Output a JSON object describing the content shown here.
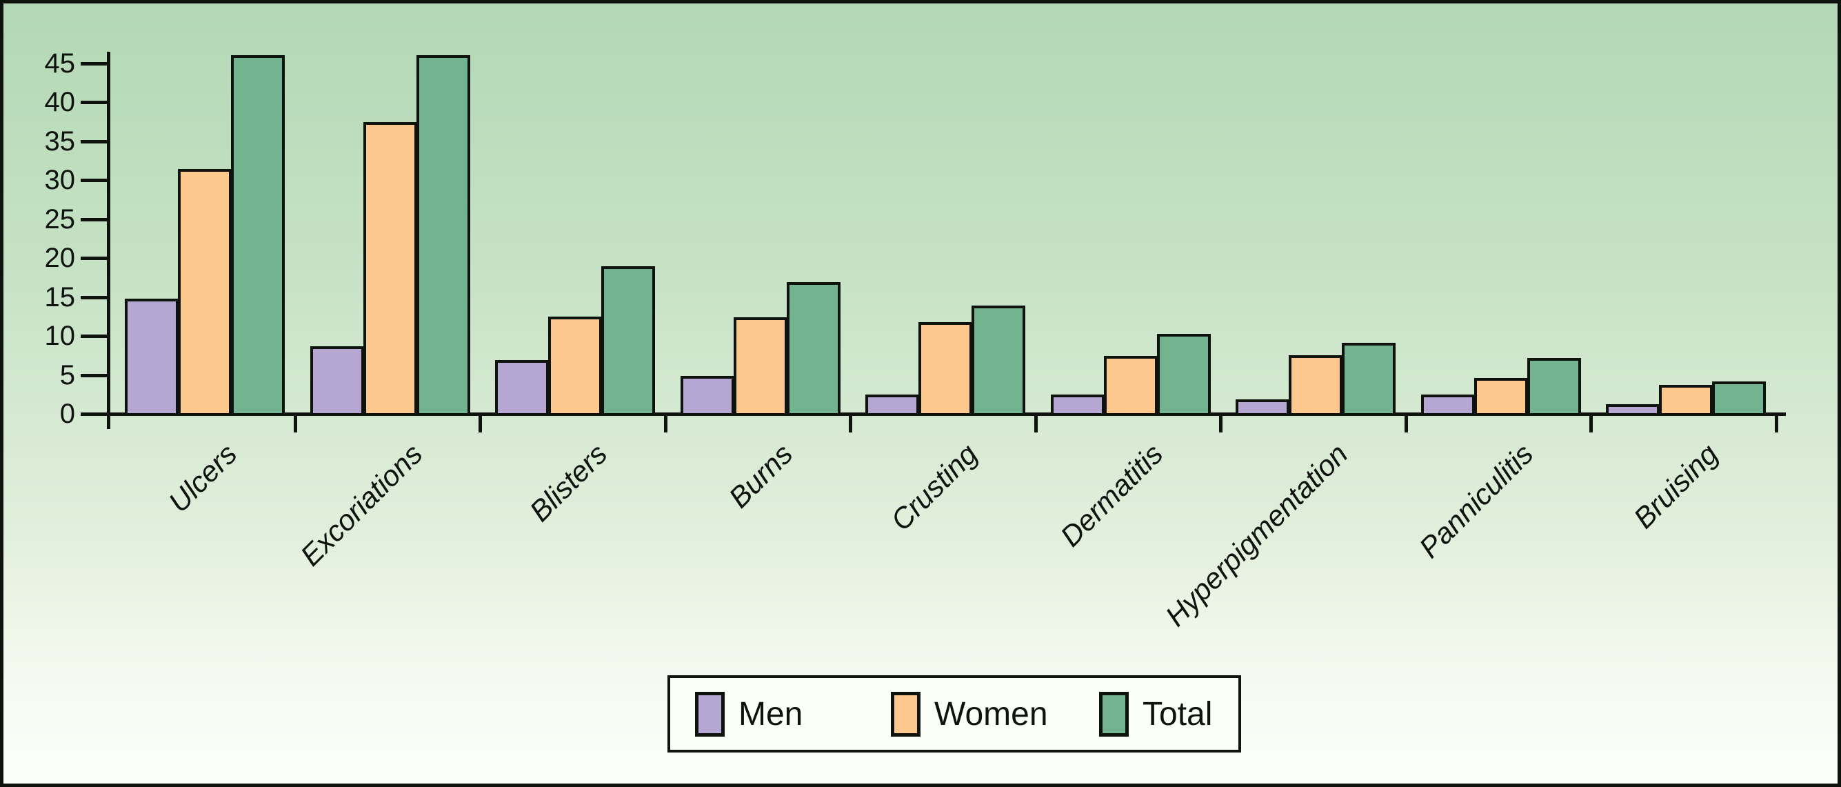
{
  "chart_data": {
    "type": "bar",
    "title": "",
    "xlabel": "",
    "ylabel": "",
    "categories": [
      "Ulcers",
      "Excoriations",
      "Blisters",
      "Burns",
      "Crusting",
      "Dermatitis",
      "Hyperpigmentation",
      "Panniculitis",
      "Bruising"
    ],
    "series": [
      {
        "name": "Men",
        "color": "#b5a7d2",
        "values": [
          14.8,
          8.7,
          6.9,
          4.9,
          2.5,
          2.5,
          1.9,
          2.5,
          1.2
        ]
      },
      {
        "name": "Women",
        "color": "#fcc88e",
        "values": [
          31.4,
          37.4,
          12.5,
          12.4,
          11.8,
          7.4,
          7.5,
          4.6,
          3.7
        ]
      },
      {
        "name": "Total",
        "color": "#72b48f",
        "values": [
          46.0,
          46.0,
          18.9,
          16.9,
          13.9,
          10.3,
          9.1,
          7.2,
          4.2
        ]
      }
    ],
    "ylim": [
      0,
      46.5
    ],
    "yticks": [
      0,
      5,
      10,
      15,
      20,
      25,
      30,
      35,
      40,
      45
    ],
    "grid": false,
    "bar_outline_color": "#0e130e",
    "legend_position": "bottom-center",
    "legend_labels": [
      "Men",
      "Women",
      "Total"
    ],
    "background_top_color": "#b3d8b5",
    "background_bottom_color": "#fdfffb"
  }
}
